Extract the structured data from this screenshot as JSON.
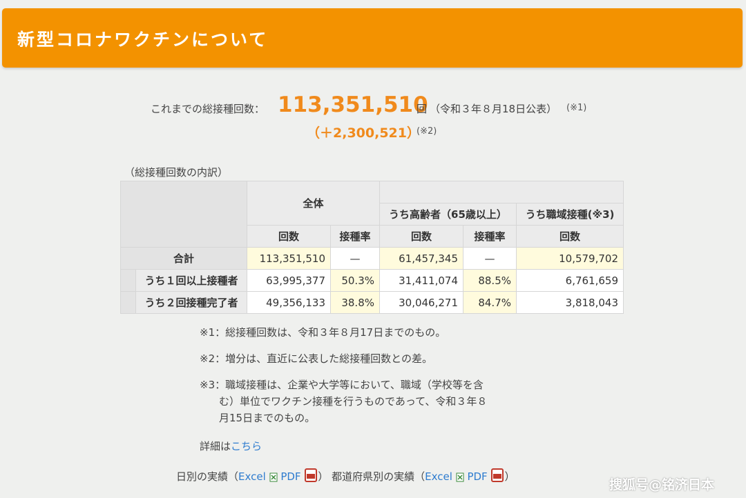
{
  "header": {
    "title": "新型コロナワクチンについて"
  },
  "summary": {
    "label": "これまでの総接種回数：",
    "total": "113,351,510",
    "unit": "回",
    "note": "（令和３年８月18日公表）",
    "ref": "(※1)",
    "diff": "（＋2,300,521）",
    "diff_ref": "(※2)"
  },
  "table": {
    "caption": "（総接種回数の内訳）",
    "group_all": "全体",
    "group_elderly": "うち高齢者（65歳以上）",
    "group_workplace": "うち職域接種(※3)",
    "col_count": "回数",
    "col_rate": "接種率",
    "rows": [
      {
        "label": "合計",
        "all_count": "113,351,510",
        "all_rate": "—",
        "elderly_count": "61,457,345",
        "elderly_rate": "—",
        "workplace_count": "10,579,702"
      },
      {
        "label": "うち１回以上接種者",
        "all_count": "63,995,377",
        "all_rate": "50.3%",
        "elderly_count": "31,411,074",
        "elderly_rate": "88.5%",
        "workplace_count": "6,761,659"
      },
      {
        "label": "うち２回接種完了者",
        "all_count": "49,356,133",
        "all_rate": "38.8%",
        "elderly_count": "30,046,271",
        "elderly_rate": "84.7%",
        "workplace_count": "3,818,043"
      }
    ]
  },
  "notes": {
    "n1": "※1：総接種回数は、令和３年８月17日までのもの。",
    "n2": "※2：増分は、直近に公表した総接種回数との差。",
    "n3_l1": "※3：職域接種は、企業や大学等において、職域（学校等を含",
    "n3_l2": "む）単位でワクチン接種を行うものであって、令和３年８",
    "n3_l3": "月15日までのもの。"
  },
  "detail": {
    "prefix": "詳細は",
    "link": "こちら"
  },
  "files": {
    "daily_label": "日別の実績（",
    "pref_label": "都道府県別の実績（",
    "excel": "Excel",
    "pdf": "PDF",
    "close": "）"
  },
  "watermark": "搜狐号@铭济日本",
  "colors": {
    "header": "#f39200",
    "accent": "#f08a1c",
    "link": "#2e7ccf",
    "highlight": "#fffbdd"
  }
}
